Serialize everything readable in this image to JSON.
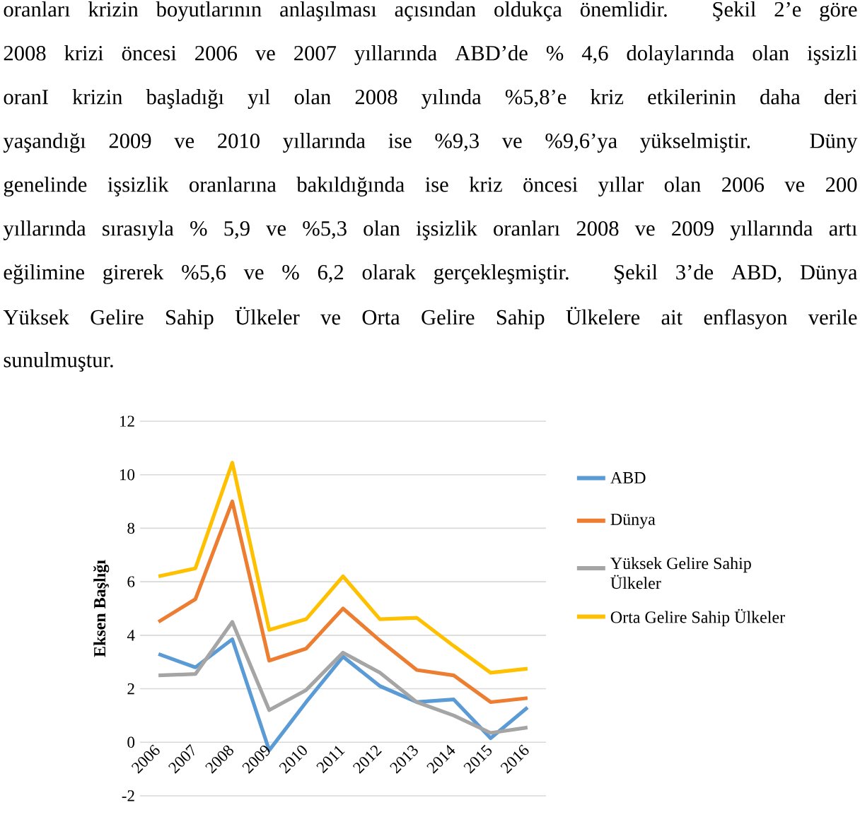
{
  "chart_data": {
    "type": "line",
    "annotations": [
      "oranları krizin boyutlarının anlaşılması açısından oldukça önemlidir. Şekil 2’e göre",
      "2008 krizi öncesi 2006 ve 2007 yıllarında ABD’de % 4,6 dolaylarında olan işsizli",
      "oranI krizin başladığı yıl olan 2008 yılında %5,8’e kriz etkilerinin daha deri",
      "yaşandığı 2009 ve 2010 yıllarında ise %9,3 ve %9,6’ya yükselmiştir. Düny",
      "genelinde işsizlik oranlarına bakıldığında ise kriz öncesi yıllar olan 2006 ve 200",
      "yıllarında sırasıyla % 5,9 ve %5,3 olan işsizlik oranları 2008 ve 2009 yıllarında artı",
      "eğilimine girerek %5,6 ve % 6,2 olarak gerçekleşmiştir. Şekil 3’de ABD, Dünya",
      "Yüksek Gelire Sahip Ülkeler ve Orta Gelire Sahip Ülkelere ait enflasyon verile",
      "sunulmuştur."
    ],
    "ylabel": "Eksen Başlığı",
    "categories": [
      "2006",
      "2007",
      "2008",
      "2009",
      "2010",
      "2011",
      "2012",
      "2013",
      "2014",
      "2015",
      "2016"
    ],
    "series": [
      {
        "name": "ABD",
        "color": "#5b9bd5",
        "values": [
          3.3,
          2.8,
          3.85,
          -0.3,
          1.5,
          3.2,
          2.1,
          1.5,
          1.6,
          0.15,
          1.3
        ]
      },
      {
        "name": "Dünya",
        "color": "#ed7d31",
        "values": [
          4.5,
          5.35,
          9.0,
          3.05,
          3.5,
          5.0,
          3.8,
          2.7,
          2.5,
          1.5,
          1.65
        ]
      },
      {
        "name": "Yüksek Gelire Sahip Ülkeler",
        "color": "#a5a5a5",
        "values": [
          2.5,
          2.55,
          4.5,
          1.2,
          1.95,
          3.35,
          2.6,
          1.5,
          1.0,
          0.35,
          0.55
        ]
      },
      {
        "name": "Orta Gelire Sahip Ülkeler",
        "color": "#ffc000",
        "values": [
          6.2,
          6.5,
          10.45,
          4.2,
          4.6,
          6.2,
          4.6,
          4.65,
          3.6,
          2.6,
          2.75
        ]
      }
    ],
    "ylim": [
      -2,
      12
    ],
    "yticks": [
      -2,
      0,
      2,
      4,
      6,
      8,
      10,
      12
    ],
    "grid": "y",
    "legend": "right",
    "marker": "none",
    "line_style": "solid"
  }
}
